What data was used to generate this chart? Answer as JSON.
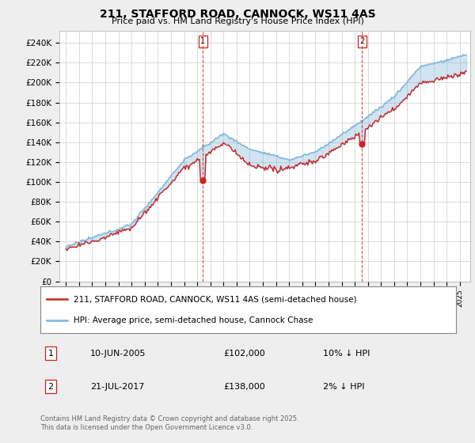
{
  "title_line1": "211, STAFFORD ROAD, CANNOCK, WS11 4AS",
  "title_line2": "Price paid vs. HM Land Registry's House Price Index (HPI)",
  "ylabel_ticks": [
    "£0",
    "£20K",
    "£40K",
    "£60K",
    "£80K",
    "£100K",
    "£120K",
    "£140K",
    "£160K",
    "£180K",
    "£200K",
    "£220K",
    "£240K"
  ],
  "ylim": [
    0,
    252000
  ],
  "xlim_start": 1994.5,
  "xlim_end": 2025.8,
  "hpi_color": "#7ab4d8",
  "price_color": "#cc2222",
  "fill_color": "#ddeeff",
  "marker1_x": 2005.44,
  "marker1_y": 102000,
  "marker2_x": 2017.55,
  "marker2_y": 138000,
  "legend_line1": "211, STAFFORD ROAD, CANNOCK, WS11 4AS (semi-detached house)",
  "legend_line2": "HPI: Average price, semi-detached house, Cannock Chase",
  "table_row1_num": "1",
  "table_row1_date": "10-JUN-2005",
  "table_row1_price": "£102,000",
  "table_row1_hpi": "10% ↓ HPI",
  "table_row2_num": "2",
  "table_row2_date": "21-JUL-2017",
  "table_row2_price": "£138,000",
  "table_row2_hpi": "2% ↓ HPI",
  "footer": "Contains HM Land Registry data © Crown copyright and database right 2025.\nThis data is licensed under the Open Government Licence v3.0.",
  "bg_color": "#eeeeee",
  "plot_bg_color": "#ffffff",
  "grid_color": "#cccccc"
}
